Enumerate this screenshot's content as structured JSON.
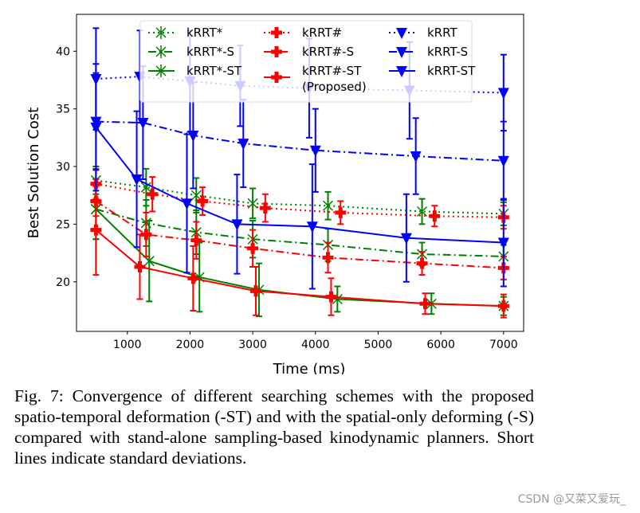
{
  "chart_data": {
    "type": "line",
    "xlabel": "Time (ms)",
    "ylabel": "Best Solution Cost",
    "xlim": [
      190,
      7320
    ],
    "ylim": [
      15.7,
      43.2
    ],
    "xticks": [
      1000,
      2000,
      3000,
      4000,
      5000,
      6000,
      7000
    ],
    "yticks": [
      20,
      25,
      30,
      35,
      40
    ],
    "grid": false,
    "legend_placement": "top-right",
    "legend_columns": 3,
    "series": [
      {
        "name": "kRRT*",
        "color": "#008000",
        "marker": "asterisk",
        "linestyle": "dotted",
        "x": [
          500,
          1300,
          2100,
          3000,
          4200,
          5700,
          7000
        ],
        "y": [
          28.8,
          28.2,
          27.5,
          26.8,
          26.6,
          26.1,
          25.9
        ],
        "err": [
          1.2,
          1.6,
          1.5,
          1.3,
          1.2,
          1.1,
          1.0
        ]
      },
      {
        "name": "kRRT*-S",
        "color": "#008000",
        "marker": "asterisk",
        "linestyle": "dashdot",
        "x": [
          500,
          1300,
          2100,
          3000,
          4200,
          5700,
          7000
        ],
        "y": [
          26.3,
          25.1,
          24.3,
          23.7,
          23.2,
          22.4,
          22.2
        ],
        "err": [
          2.6,
          2.0,
          1.9,
          1.6,
          1.4,
          1.0,
          1.0
        ]
      },
      {
        "name": "kRRT*-ST",
        "color": "#008000",
        "marker": "asterisk",
        "linestyle": "solid",
        "x": [
          500,
          1350,
          2150,
          3100,
          4350,
          5850,
          7000
        ],
        "y": [
          26.3,
          21.8,
          20.4,
          19.3,
          18.5,
          18.1,
          17.9
        ],
        "err": [
          2.6,
          3.5,
          3.0,
          2.3,
          1.1,
          0.9,
          0.8
        ]
      },
      {
        "name": "kRRT#",
        "color": "#ff0000",
        "marker": "plus",
        "linestyle": "dotted",
        "x": [
          500,
          1400,
          2200,
          3200,
          4400,
          5900,
          7000
        ],
        "y": [
          28.5,
          27.6,
          27.0,
          26.4,
          26.0,
          25.7,
          25.6
        ],
        "err": [
          1.3,
          1.5,
          1.2,
          1.2,
          1.0,
          0.9,
          1.0
        ]
      },
      {
        "name": "kRRT#-S",
        "color": "#ff0000",
        "marker": "plus",
        "linestyle": "dashdot",
        "x": [
          500,
          1300,
          2100,
          3000,
          4200,
          5700,
          7000
        ],
        "y": [
          27.0,
          24.1,
          23.6,
          22.9,
          22.1,
          21.6,
          21.2
        ],
        "err": [
          1.3,
          1.9,
          1.6,
          1.6,
          1.3,
          1.0,
          1.0
        ]
      },
      {
        "name": "kRRT#-ST\n(Proposed)",
        "color": "#ff0000",
        "marker": "plus",
        "linestyle": "solid",
        "x": [
          500,
          1200,
          2050,
          3050,
          4250,
          5750,
          7000
        ],
        "y": [
          24.5,
          21.3,
          20.3,
          19.2,
          18.7,
          18.1,
          17.9
        ],
        "err": [
          3.9,
          2.8,
          2.8,
          2.1,
          1.6,
          0.9,
          1.0
        ]
      },
      {
        "name": "kRRT",
        "color": "#0000ff",
        "marker": "triangle-down",
        "linestyle": "dotted",
        "x": [
          500,
          1200,
          2000,
          2800,
          3900,
          5500,
          7000
        ],
        "y": [
          37.6,
          37.8,
          37.4,
          37.0,
          36.8,
          36.6,
          36.4
        ],
        "err": [
          4.4,
          4.0,
          4.4,
          3.5,
          4.3,
          4.2,
          3.3
        ]
      },
      {
        "name": "kRRT-S",
        "color": "#0000ff",
        "marker": "triangle-down",
        "linestyle": "dashdot",
        "x": [
          500,
          1250,
          2050,
          2850,
          4000,
          5600,
          7000
        ],
        "y": [
          33.9,
          33.8,
          32.7,
          32.0,
          31.4,
          30.9,
          30.5
        ],
        "err": [
          4.2,
          4.9,
          4.6,
          3.8,
          3.6,
          3.3,
          3.4
        ]
      },
      {
        "name": "kRRT-ST",
        "color": "#0000ff",
        "marker": "triangle-down",
        "linestyle": "solid",
        "x": [
          500,
          1150,
          1950,
          2750,
          3950,
          5450,
          7000
        ],
        "y": [
          33.4,
          28.9,
          26.8,
          25.0,
          24.8,
          23.8,
          23.4
        ],
        "err": [
          5.5,
          5.9,
          6.0,
          4.3,
          5.4,
          3.8,
          3.8
        ]
      }
    ]
  },
  "caption": "Fig. 7: Convergence of different searching schemes with the proposed spatio-temporal deformation (-ST) and with the spatial-only deforming (-S) compared with stand-alone sampling-based kinodynamic planners. Short lines indicate standard deviations.",
  "watermark": "CSDN @又菜又爱玩_"
}
